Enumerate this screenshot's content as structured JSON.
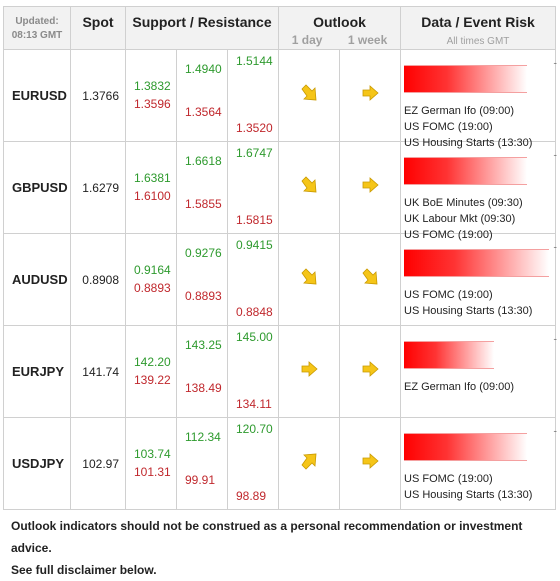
{
  "header": {
    "updated_label": "Updated:",
    "updated_time": "08:13 GMT",
    "spot": "Spot",
    "support_resistance": "Support / Resistance",
    "outlook": "Outlook",
    "outlook_1day": "1 day",
    "outlook_1week": "1 week",
    "data_event_risk": "Data / Event Risk",
    "all_times": "All times GMT"
  },
  "rows": [
    {
      "pair": "EURUSD",
      "spot": "1.3766",
      "s1": "1.3832",
      "r1": "1.3596",
      "s2": "1.4940",
      "r2": "1.3564",
      "s3": "1.5144",
      "r3": "1.3520",
      "day": "down-right",
      "week": "right",
      "risk_level": 0.85,
      "events": [
        {
          "name": "EZ German Ifo",
          "time": "(09:00)"
        },
        {
          "name": "US FOMC",
          "time": "(19:00)"
        },
        {
          "name": "US Housing Starts",
          "time": "(13:30)"
        }
      ]
    },
    {
      "pair": "GBPUSD",
      "spot": "1.6279",
      "s1": "1.6381",
      "r1": "1.6100",
      "s2": "1.6618",
      "r2": "1.5855",
      "s3": "1.6747",
      "r3": "1.5815",
      "day": "down-right",
      "week": "right",
      "risk_level": 0.85,
      "events": [
        {
          "name": "UK BoE Minutes",
          "time": "(09:30)"
        },
        {
          "name": "UK Labour Mkt",
          "time": "(09:30)"
        },
        {
          "name": "US FOMC",
          "time": "(19:00)"
        }
      ]
    },
    {
      "pair": "AUDUSD",
      "spot": "0.8908",
      "s1": "0.9164",
      "r1": "0.8893",
      "s2": "0.9276",
      "r2": "0.8893",
      "s3": "0.9415",
      "r3": "0.8848",
      "day": "down-right",
      "week": "down-right",
      "risk_level": 1.0,
      "events": [
        {
          "name": "US FOMC",
          "time": "(19:00)"
        },
        {
          "name": "US Housing Starts",
          "time": "(13:30)"
        }
      ]
    },
    {
      "pair": "EURJPY",
      "spot": "141.74",
      "s1": "142.20",
      "r1": "139.22",
      "s2": "143.25",
      "r2": "138.49",
      "s3": "145.00",
      "r3": "134.11",
      "day": "right",
      "week": "right",
      "risk_level": 0.62,
      "events": [
        {
          "name": "EZ German Ifo",
          "time": "(09:00)"
        }
      ]
    },
    {
      "pair": "USDJPY",
      "spot": "102.97",
      "s1": "103.74",
      "r1": "101.31",
      "s2": "112.34",
      "r2": "99.91",
      "s3": "120.70",
      "r3": "98.89",
      "day": "up-right",
      "week": "right",
      "risk_level": 0.85,
      "events": [
        {
          "name": "US FOMC",
          "time": "(19:00)"
        },
        {
          "name": "US Housing Starts",
          "time": "(13:30)"
        }
      ]
    }
  ],
  "disclaimer": {
    "line1": "Outlook indicators should not be construed as a personal recommendation or investment advice.",
    "line2": "See full disclaimer below."
  },
  "colors": {
    "support": "#2e9a2e",
    "resistance": "#c0282d",
    "arrow": "#f5c518",
    "risk_bar": "#ff0000"
  }
}
